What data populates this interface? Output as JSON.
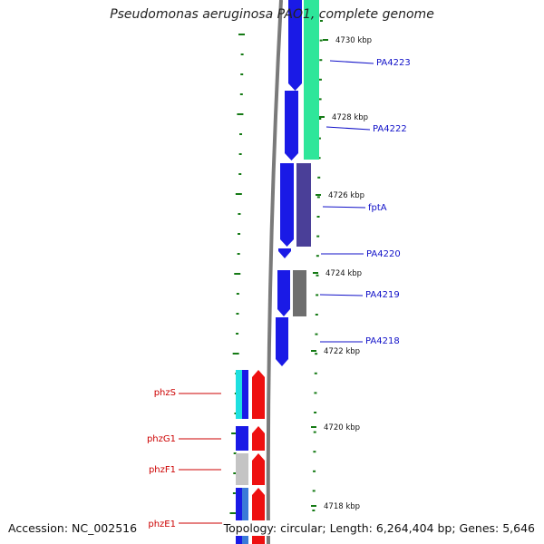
{
  "title": "Pseudomonas aeruginosa PAO1, complete genome",
  "footer": {
    "accession": "Accession: NC_002516",
    "topology": "Topology: circular; Length: 6,264,404 bp; Genes: 5,646"
  },
  "scale_labels": [
    "4730 kbp",
    "4728 kbp",
    "4726 kbp",
    "4724 kbp",
    "4722 kbp",
    "4720 kbp",
    "4718 kbp"
  ],
  "genes_forward": [
    {
      "label": "PA4223"
    },
    {
      "label": "PA4222"
    },
    {
      "label": "fptA"
    },
    {
      "label": "PA4220"
    },
    {
      "label": "PA4219"
    },
    {
      "label": "PA4218"
    }
  ],
  "genes_phz": [
    {
      "label": "phzS"
    },
    {
      "label": "phzG1"
    },
    {
      "label": "phzF1"
    },
    {
      "label": "phzE1"
    }
  ],
  "colors": {
    "forward_label": "#1010c8",
    "phz_label": "#cc0000",
    "tick": "#157a15",
    "backbone": "#7a7a7a",
    "gene_blue": "#1a1ae6",
    "gene_green": "#2ee69a",
    "gene_purple": "#4a3f98",
    "gene_gray": "#6e6e6e",
    "gene_red": "#ee1010",
    "gene_cyan": "#1ee0e0",
    "gene_light": "#c4c4c4"
  }
}
